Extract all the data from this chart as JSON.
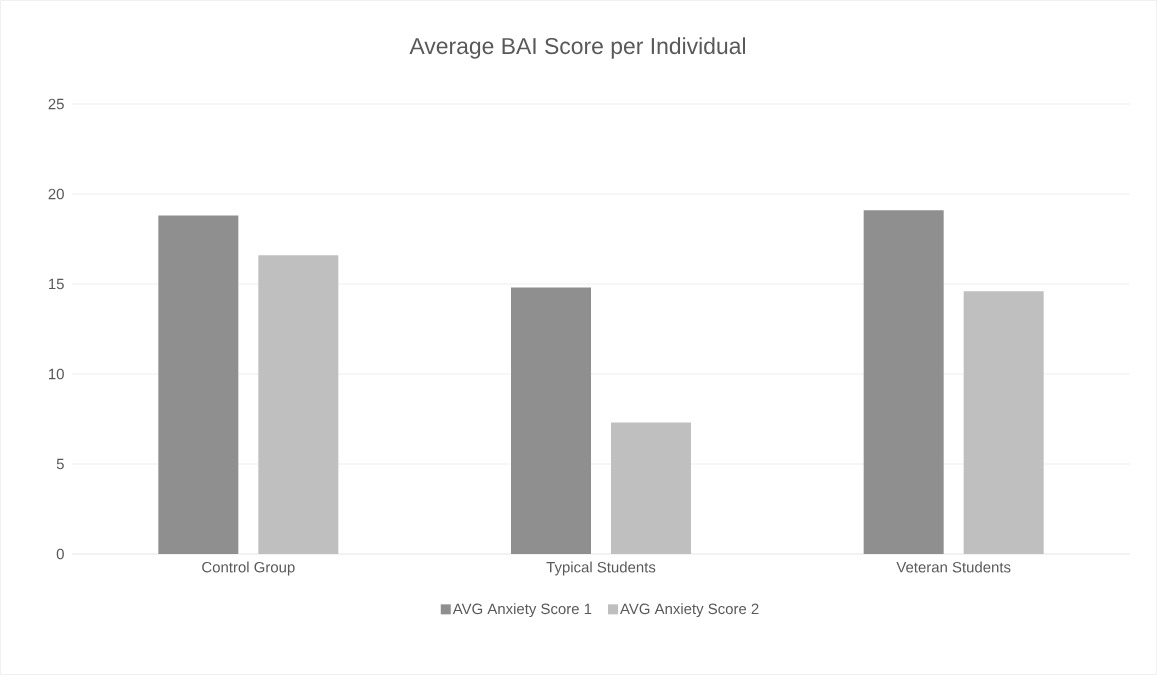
{
  "chart_data": {
    "type": "bar",
    "title": "Average BAI Score per Individual",
    "categories": [
      "Control Group",
      "Typical Students",
      "Veteran Students"
    ],
    "series": [
      {
        "name": "AVG Anxiety Score 1",
        "color": "#8f8f8f",
        "values": [
          18.8,
          14.8,
          19.1
        ]
      },
      {
        "name": "AVG Anxiety Score 2",
        "color": "#bfbfbf",
        "values": [
          16.6,
          7.3,
          14.6
        ]
      }
    ],
    "ylim": [
      0,
      25
    ],
    "yticks": [
      0,
      5,
      10,
      15,
      20,
      25
    ],
    "grid": "y",
    "legend": "bottom"
  }
}
